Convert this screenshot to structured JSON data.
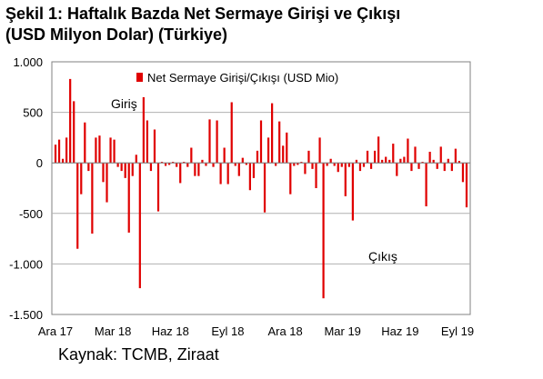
{
  "header": {
    "title_line1": "Şekil 1: Haftalık Bazda Net Sermaye Girişi ve Çıkışı",
    "title_line2": "(USD Milyon Dolar) (Türkiye)"
  },
  "footer": {
    "source": "Kaynak: TCMB, Ziraat"
  },
  "colors": {
    "bar": "#e00000",
    "axis": "#808080",
    "grid": "#b0b0b0",
    "background": "#ffffff"
  },
  "chart_data": {
    "type": "bar",
    "title": "Şekil 1: Haftalık Bazda Net Sermaye Girişi ve Çıkışı (USD Milyon Dolar) (Türkiye)",
    "legend": {
      "label": "Net Sermaye Girişi/Çıkışı (USD Mio)",
      "placement": "top"
    },
    "series": [
      {
        "name": "Net Sermaye Girişi/Çıkışı (USD Mio)",
        "values": [
          180,
          230,
          40,
          250,
          830,
          610,
          -850,
          -310,
          400,
          -80,
          -700,
          250,
          270,
          -190,
          -390,
          250,
          230,
          -40,
          -80,
          -150,
          -690,
          -130,
          80,
          -1240,
          650,
          420,
          -80,
          330,
          -480,
          10,
          -30,
          -20,
          10,
          -40,
          -200,
          10,
          -40,
          150,
          -130,
          -130,
          30,
          -30,
          430,
          -40,
          420,
          -210,
          150,
          -210,
          600,
          -30,
          -130,
          50,
          -20,
          -270,
          -150,
          120,
          420,
          -490,
          250,
          590,
          -30,
          410,
          170,
          300,
          -310,
          -30,
          -20,
          10,
          -110,
          120,
          -60,
          -250,
          250,
          -1340,
          -30,
          40,
          -30,
          -90,
          -40,
          -330,
          -40,
          -570,
          30,
          -80,
          -40,
          120,
          -60,
          120,
          260,
          30,
          60,
          30,
          190,
          -130,
          40,
          60,
          240,
          -80,
          160,
          -60,
          10,
          -430,
          110,
          30,
          -60,
          160,
          -80,
          40,
          -80,
          140,
          20,
          -190,
          -440
        ]
      }
    ],
    "x_tick_labels": [
      "Ara 17",
      "Mar 18",
      "Haz 18",
      "Eyl 18",
      "Ara 18",
      "Mar 19",
      "Haz 19",
      "Eyl 19"
    ],
    "y_tick_labels": [
      "1.000",
      "500",
      "0",
      "-500",
      "-1.000",
      "-1.500"
    ],
    "ylim": [
      -1500,
      1000
    ],
    "yticks": [
      1000,
      500,
      0,
      -500,
      -1000,
      -1500
    ],
    "annotations": [
      "Giriş",
      "Çıkış"
    ],
    "grid": true
  }
}
